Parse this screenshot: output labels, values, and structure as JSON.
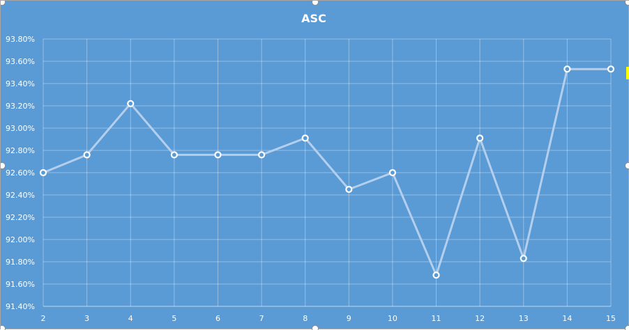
{
  "chart_data": {
    "type": "line",
    "title": "ASC",
    "xlabel": "",
    "ylabel": "",
    "x": [
      "2",
      "3",
      "4",
      "5",
      "6",
      "7",
      "8",
      "9",
      "10",
      "11",
      "12",
      "13",
      "14",
      "15"
    ],
    "series": [
      {
        "values": [
          92.6,
          92.76,
          93.22,
          92.76,
          92.76,
          92.76,
          92.91,
          92.45,
          92.6,
          91.68,
          92.91,
          91.83,
          93.53,
          93.53
        ]
      }
    ],
    "ylim": [
      91.4,
      93.8
    ],
    "yticks": [
      "91.40%",
      "91.60%",
      "91.80%",
      "92.00%",
      "92.20%",
      "92.40%",
      "92.60%",
      "92.80%",
      "93.00%",
      "93.20%",
      "93.40%",
      "93.60%",
      "93.80%"
    ],
    "grid": true,
    "legend": "none"
  },
  "colors": {
    "background": "#5b9bd5",
    "line": "#b4cfee",
    "text": "#ffffff"
  }
}
